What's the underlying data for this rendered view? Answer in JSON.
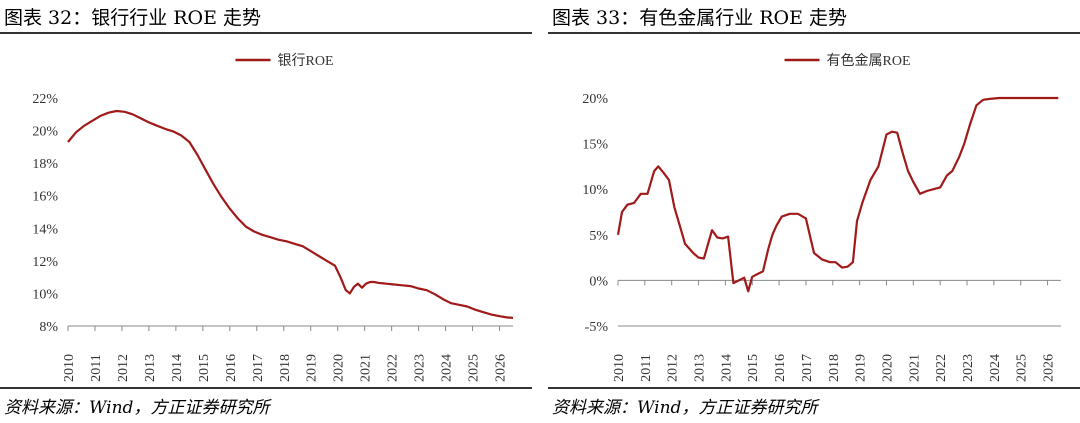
{
  "panels": [
    {
      "title": "图表 32：银行行业 ROE 走势",
      "source": "资料来源：Wind，方正证券研究所"
    },
    {
      "title": "图表 33：有色金属行业 ROE 走势",
      "source": "资料来源：Wind，方正证券研究所"
    }
  ],
  "chart_data": [
    {
      "type": "line",
      "title": "",
      "xlabel": "",
      "ylabel": "",
      "x_tick_labels": [
        "2010",
        "2011",
        "2012",
        "2013",
        "2014",
        "2015",
        "2016",
        "2017",
        "2018",
        "2019",
        "2020",
        "2021",
        "2022",
        "2023",
        "2024",
        "2025",
        "2026"
      ],
      "y_tick_labels": [
        "8%",
        "10%",
        "12%",
        "14%",
        "16%",
        "18%",
        "20%",
        "22%"
      ],
      "ylim": [
        8,
        22
      ],
      "xlim": [
        2010,
        2026.5
      ],
      "grid": false,
      "legend": "top-center",
      "color": "#a01a1a",
      "series": [
        {
          "name": "银行ROE",
          "x": [
            2010.0,
            2010.3,
            2010.6,
            2010.9,
            2011.2,
            2011.5,
            2011.8,
            2012.1,
            2012.4,
            2012.7,
            2013.0,
            2013.3,
            2013.6,
            2013.9,
            2014.2,
            2014.5,
            2014.8,
            2015.1,
            2015.4,
            2015.7,
            2016.0,
            2016.3,
            2016.6,
            2016.9,
            2017.2,
            2017.5,
            2017.8,
            2018.1,
            2018.4,
            2018.7,
            2019.0,
            2019.3,
            2019.6,
            2019.9,
            2020.1,
            2020.3,
            2020.45,
            2020.6,
            2020.75,
            2020.9,
            2021.05,
            2021.2,
            2021.35,
            2021.5,
            2021.8,
            2022.1,
            2022.4,
            2022.7,
            2023.0,
            2023.3,
            2023.6,
            2023.9,
            2024.2,
            2024.5,
            2024.8,
            2025.1,
            2025.4,
            2025.7,
            2026.0,
            2026.3,
            2026.5
          ],
          "values": [
            19.3,
            19.9,
            20.3,
            20.6,
            20.9,
            21.1,
            21.2,
            21.15,
            21.0,
            20.75,
            20.5,
            20.3,
            20.1,
            19.95,
            19.7,
            19.3,
            18.5,
            17.6,
            16.7,
            15.9,
            15.2,
            14.6,
            14.1,
            13.8,
            13.6,
            13.45,
            13.3,
            13.2,
            13.05,
            12.9,
            12.6,
            12.3,
            12.0,
            11.7,
            11.0,
            10.2,
            10.0,
            10.4,
            10.6,
            10.35,
            10.6,
            10.7,
            10.7,
            10.65,
            10.6,
            10.55,
            10.5,
            10.45,
            10.3,
            10.2,
            9.95,
            9.65,
            9.4,
            9.3,
            9.2,
            9.0,
            8.85,
            8.7,
            8.6,
            8.52,
            8.5
          ]
        }
      ]
    },
    {
      "type": "line",
      "title": "",
      "xlabel": "",
      "ylabel": "",
      "x_tick_labels": [
        "2010",
        "2011",
        "2012",
        "2013",
        "2014",
        "2015",
        "2016",
        "2017",
        "2018",
        "2019",
        "2020",
        "2021",
        "2022",
        "2023",
        "2024",
        "2025",
        "2026"
      ],
      "y_tick_labels": [
        "-5%",
        "0%",
        "5%",
        "10%",
        "15%",
        "20%"
      ],
      "ylim": [
        -5,
        20
      ],
      "xlim": [
        2010,
        2026.5
      ],
      "grid": false,
      "legend": "top-center",
      "color": "#a01a1a",
      "series": [
        {
          "name": "有色金属ROE",
          "x": [
            2010.0,
            2010.15,
            2010.35,
            2010.6,
            2010.85,
            2011.1,
            2011.35,
            2011.5,
            2011.7,
            2011.9,
            2012.1,
            2012.3,
            2012.5,
            2012.8,
            2013.0,
            2013.2,
            2013.5,
            2013.7,
            2013.9,
            2014.1,
            2014.3,
            2014.5,
            2014.7,
            2014.85,
            2015.0,
            2015.2,
            2015.4,
            2015.6,
            2015.75,
            2015.9,
            2016.1,
            2016.4,
            2016.7,
            2017.0,
            2017.3,
            2017.6,
            2017.9,
            2018.1,
            2018.35,
            2018.55,
            2018.75,
            2018.9,
            2019.1,
            2019.4,
            2019.7,
            2020.0,
            2020.2,
            2020.4,
            2020.6,
            2020.8,
            2021.0,
            2021.25,
            2021.5,
            2021.75,
            2022.0,
            2022.25,
            2022.45,
            2022.7,
            2022.9,
            2023.1,
            2023.35,
            2023.6,
            2023.85,
            2024.0,
            2024.2,
            2024.4,
            2024.65,
            2024.9,
            2025.1,
            2025.35,
            2025.6,
            2025.8,
            2026.0,
            2026.2,
            2026.4
          ],
          "values": [
            5.0,
            7.5,
            8.3,
            8.5,
            9.5,
            9.5,
            12.0,
            12.5,
            11.8,
            11.0,
            8.0,
            6.0,
            4.0,
            3.0,
            2.5,
            2.4,
            5.5,
            4.7,
            4.6,
            4.8,
            -0.3,
            0.0,
            0.3,
            -1.2,
            0.4,
            0.7,
            1.0,
            3.5,
            5.0,
            6.0,
            7.0,
            7.3,
            7.3,
            6.8,
            3.0,
            2.3,
            2.0,
            2.0,
            1.4,
            1.5,
            2.0,
            6.5,
            8.5,
            11.0,
            12.5,
            16.0,
            16.3,
            16.2,
            14.0,
            12.0,
            10.8,
            9.5,
            9.8,
            10.0,
            10.2,
            11.5,
            12.0,
            13.5,
            15.0,
            17.0,
            19.2,
            19.8,
            19.9,
            19.95,
            20.0,
            20.0,
            20.0,
            20.0,
            20.0,
            20.0,
            20.0,
            20.0,
            20.0,
            20.0,
            20.0
          ]
        }
      ]
    }
  ]
}
